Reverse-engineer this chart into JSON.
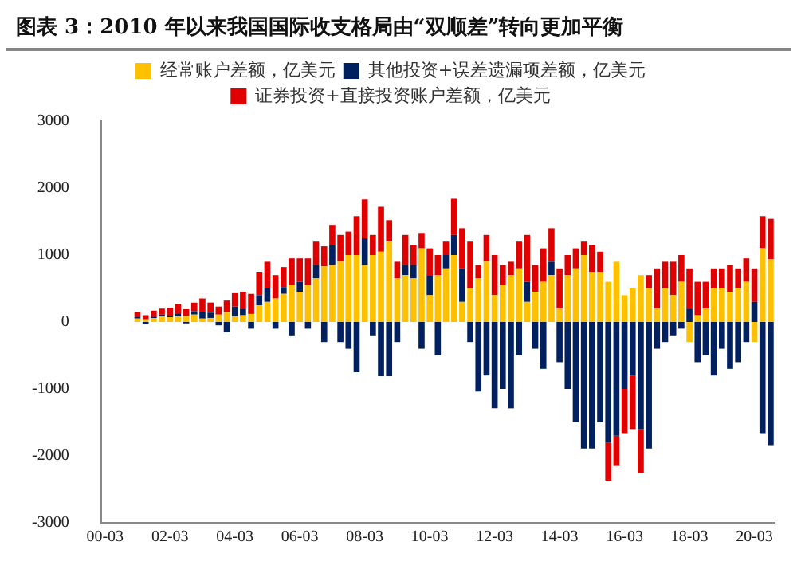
{
  "chart_data": {
    "type": "bar",
    "stacked": true,
    "title": "图表 3：2010 年以来我国国际收支格局由“双顺差”转向更加平衡",
    "categories": [
      "00-03",
      null,
      null,
      null,
      null,
      null,
      null,
      null,
      "02-03",
      null,
      null,
      null,
      null,
      null,
      null,
      null,
      "04-03",
      null,
      null,
      null,
      null,
      null,
      null,
      null,
      "06-03",
      null,
      null,
      null,
      null,
      null,
      null,
      null,
      "08-03",
      null,
      null,
      null,
      null,
      null,
      null,
      null,
      "10-03",
      null,
      null,
      null,
      null,
      null,
      null,
      null,
      "12-03",
      null,
      null,
      null,
      null,
      null,
      null,
      null,
      "14-03",
      null,
      null,
      null,
      null,
      null,
      null,
      null,
      "16-03",
      null,
      null,
      null,
      null,
      null,
      null,
      null,
      "18-03",
      null,
      null,
      null,
      null,
      null,
      null,
      null,
      "20-03",
      null,
      null
    ],
    "series": [
      {
        "name": "经常账户差额，亿美元",
        "color": "#ffc000",
        "values": [
          null,
          null,
          null,
          null,
          50,
          40,
          60,
          80,
          70,
          80,
          90,
          110,
          50,
          60,
          110,
          140,
          80,
          100,
          120,
          250,
          300,
          350,
          420,
          550,
          450,
          550,
          650,
          830,
          850,
          900,
          1000,
          1000,
          850,
          1000,
          1050,
          1200,
          650,
          700,
          650,
          1100,
          400,
          700,
          800,
          1000,
          300,
          500,
          650,
          900,
          400,
          550,
          700,
          800,
          300,
          450,
          600,
          700,
          200,
          700,
          800,
          1000,
          750,
          750,
          600,
          900,
          400,
          500,
          700,
          500,
          200,
          500,
          400,
          600,
          -300,
          100,
          200,
          500,
          500,
          450,
          500,
          600,
          -300,
          1100,
          940
        ]
      },
      {
        "name": "其他投资+误差遗漏项差额，亿美元",
        "color": "#002060",
        "values": [
          null,
          null,
          null,
          null,
          20,
          -30,
          10,
          30,
          20,
          40,
          -20,
          50,
          100,
          80,
          -50,
          -150,
          150,
          100,
          -100,
          150,
          200,
          -100,
          100,
          -200,
          150,
          -100,
          200,
          -300,
          300,
          -300,
          -400,
          -750,
          400,
          -200,
          -810,
          -810,
          -300,
          150,
          200,
          -400,
          300,
          -500,
          200,
          300,
          500,
          -300,
          -1040,
          -800,
          -1290,
          -1000,
          -1290,
          -500,
          300,
          -400,
          -700,
          200,
          -600,
          -1000,
          -1500,
          -1890,
          -1890,
          -1500,
          -1800,
          -1700,
          -1000,
          -800,
          -1600,
          -1890,
          -400,
          -300,
          -200,
          -100,
          200,
          -600,
          -500,
          -800,
          -400,
          -700,
          -600,
          -300,
          300,
          -1660,
          -1840
        ]
      },
      {
        "name": "证券投资+直接投资账户差额，亿美元",
        "color": "#e00000",
        "values": [
          null,
          null,
          null,
          null,
          80,
          60,
          100,
          90,
          120,
          150,
          100,
          130,
          200,
          150,
          120,
          180,
          200,
          250,
          300,
          350,
          400,
          350,
          300,
          400,
          350,
          400,
          350,
          300,
          300,
          400,
          350,
          580,
          580,
          300,
          670,
          320,
          250,
          450,
          300,
          230,
          400,
          300,
          200,
          540,
          600,
          700,
          200,
          400,
          600,
          300,
          200,
          400,
          700,
          400,
          500,
          500,
          600,
          300,
          300,
          200,
          400,
          300,
          -570,
          -450,
          -660,
          -800,
          -660,
          200,
          600,
          400,
          500,
          400,
          600,
          500,
          400,
          300,
          300,
          400,
          300,
          350,
          500,
          480,
          600
        ]
      }
    ],
    "ylim": [
      -3000,
      3000
    ],
    "yticks": [
      -3000,
      -2000,
      -1000,
      0,
      1000,
      2000,
      3000
    ],
    "grid": false,
    "legend": "top"
  }
}
